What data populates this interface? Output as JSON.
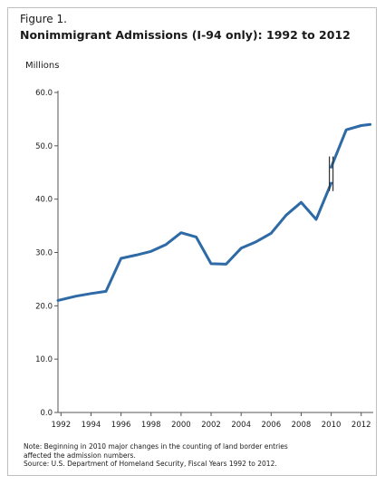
{
  "figure_label": "Figure 1.",
  "title": "Nonimmigrant Admissions (I-94 only): 1992 to 2012",
  "unit_label": "Millions",
  "note_line1": "Note: Beginning in 2010 major changes in the counting of land border entries",
  "note_line2": "affected the admission numbers.",
  "source": "Source: U.S. Department of Homeland Security, Fiscal Years 1992 to 2012.",
  "colors": {
    "line": "#2e6aa6",
    "axis": "#555555",
    "text": "#1a1a1a"
  },
  "chart_data": {
    "type": "line",
    "title": "Nonimmigrant Admissions (I-94 only): 1992 to 2012",
    "ylabel": "Millions",
    "xlabel": "",
    "ylim": [
      0,
      60
    ],
    "xlim": [
      1991.8,
      2012.8
    ],
    "yticks": [
      "0.0",
      "10.0",
      "20.0",
      "30.0",
      "40.0",
      "50.0",
      "60.0"
    ],
    "yticks_values": [
      0,
      10,
      20,
      30,
      40,
      50,
      60
    ],
    "xticks": [
      "1992",
      "1994",
      "1996",
      "1998",
      "2000",
      "2002",
      "2004",
      "2006",
      "2008",
      "2010",
      "2012"
    ],
    "grid": false,
    "series_before_break": {
      "x": [
        1991.8,
        1993,
        1994,
        1995,
        1996,
        1997,
        1998,
        1999,
        2000,
        2001,
        2002,
        2003,
        2004,
        2005,
        2006,
        2007,
        2008,
        2009,
        2010
      ],
      "y": [
        21.0,
        21.8,
        22.3,
        22.7,
        28.9,
        29.5,
        30.2,
        31.5,
        33.7,
        32.9,
        27.9,
        27.8,
        30.8,
        32.0,
        33.6,
        37.0,
        39.4,
        36.2,
        43.0
      ]
    },
    "series_after_break": {
      "x": [
        2010,
        2011,
        2012,
        2012.6
      ],
      "y": [
        46.0,
        53.0,
        53.8,
        54.0
      ]
    },
    "break_marker_x": 2010,
    "annotations": [
      "break in series at 2010"
    ]
  }
}
